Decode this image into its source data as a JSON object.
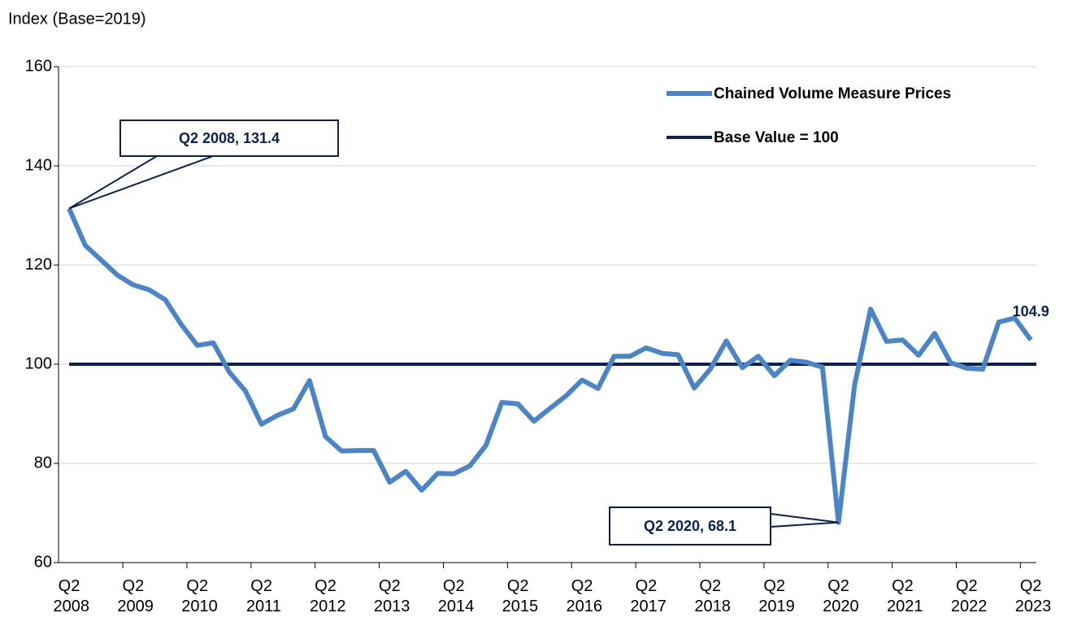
{
  "chart_data": {
    "type": "line",
    "y_axis_label": "Index (Base=2019)",
    "categories": [
      "Q2 2008",
      null,
      null,
      null,
      "Q2 2009",
      null,
      null,
      null,
      "Q2 2010",
      null,
      null,
      null,
      "Q2 2011",
      null,
      null,
      null,
      "Q2 2012",
      null,
      null,
      null,
      "Q2 2013",
      null,
      null,
      null,
      "Q2 2014",
      null,
      null,
      null,
      "Q2 2015",
      null,
      null,
      null,
      "Q2 2016",
      null,
      null,
      null,
      "Q2 2017",
      null,
      null,
      null,
      "Q2 2018",
      null,
      null,
      null,
      "Q2 2019",
      null,
      null,
      null,
      "Q2 2020",
      null,
      null,
      null,
      "Q2 2021",
      null,
      null,
      null,
      "Q2 2022",
      null,
      null,
      null,
      "Q2 2023"
    ],
    "series": [
      {
        "name": "Chained Volume Measure Prices",
        "color": "#4a84c9",
        "values": [
          131.4,
          124.0,
          121.0,
          118.0,
          116.0,
          115.0,
          113.0,
          108.0,
          103.8,
          104.3,
          98.4,
          94.6,
          87.9,
          89.7,
          91.0,
          96.7,
          85.4,
          82.5,
          82.6,
          82.6,
          76.2,
          78.4,
          74.6,
          78.0,
          77.9,
          79.5,
          83.6,
          92.3,
          92.0,
          88.5,
          91.1,
          93.6,
          96.8,
          95.1,
          101.6,
          101.6,
          103.3,
          102.2,
          101.9,
          95.2,
          99.0,
          104.7,
          99.3,
          101.6,
          97.7,
          100.8,
          100.4,
          99.4,
          68.1,
          95.7,
          111.1,
          104.6,
          104.9,
          101.8,
          106.2,
          100.3,
          99.2,
          99.0,
          108.5,
          109.3,
          104.9
        ],
        "value_labels": [
          "Q2 2008, 131.4",
          null,
          null,
          null,
          null,
          null,
          null,
          null,
          null,
          null,
          null,
          null,
          null,
          null,
          null,
          null,
          null,
          null,
          null,
          null,
          null,
          null,
          null,
          null,
          null,
          null,
          null,
          null,
          null,
          null,
          null,
          null,
          null,
          null,
          null,
          null,
          null,
          null,
          null,
          null,
          null,
          null,
          null,
          null,
          null,
          null,
          null,
          null,
          "Q2 2020, 68.1",
          null,
          null,
          null,
          null,
          null,
          null,
          null,
          null,
          null,
          null,
          null,
          "104.9"
        ]
      }
    ],
    "reference_lines": [
      {
        "name": "Base Value = 100",
        "value": 100,
        "color": "#0b2154"
      }
    ],
    "ylim": [
      60,
      160
    ],
    "yticks": [
      60,
      80,
      100,
      120,
      140,
      160
    ],
    "grid": true,
    "legend": "top-right"
  }
}
